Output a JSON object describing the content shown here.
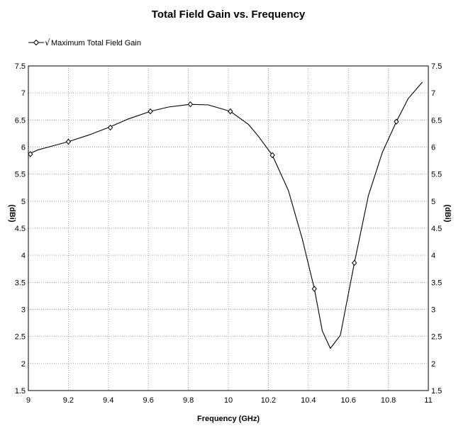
{
  "chart_data": {
    "type": "line",
    "title": "Total Field Gain vs. Frequency",
    "xlabel": "Frequency (GHz)",
    "ylabel": "(dBi)",
    "xlim": [
      9,
      11
    ],
    "ylim": [
      1.5,
      7.5
    ],
    "x_ticks": [
      "9",
      "9.2",
      "9.4",
      "9.6",
      "9.8",
      "10",
      "10.2",
      "10.4",
      "10.6",
      "10.8",
      "11"
    ],
    "y_ticks": [
      "1.5",
      "2",
      "2.5",
      "3",
      "3.5",
      "4",
      "4.5",
      "5",
      "5.5",
      "6",
      "6.5",
      "7",
      "7.5"
    ],
    "grid": true,
    "legend_position": "top-left",
    "series": [
      {
        "name": "Maximum Total Field Gain",
        "color": "#000000",
        "marker": "diamond",
        "x": [
          9.0,
          9.05,
          9.1,
          9.2,
          9.3,
          9.4,
          9.5,
          9.61,
          9.7,
          9.81,
          9.9,
          10.01,
          10.1,
          10.15,
          10.22,
          10.3,
          10.37,
          10.43,
          10.47,
          10.51,
          10.56,
          10.63,
          10.7,
          10.77,
          10.84,
          10.9,
          10.97
        ],
        "y": [
          5.87,
          5.95,
          6.0,
          6.1,
          6.22,
          6.36,
          6.52,
          6.66,
          6.74,
          6.79,
          6.78,
          6.66,
          6.42,
          6.2,
          5.85,
          5.2,
          4.3,
          3.38,
          2.6,
          2.28,
          2.52,
          3.86,
          5.1,
          5.9,
          6.47,
          6.9,
          7.2
        ],
        "marker_x": [
          9.01,
          9.2,
          9.41,
          9.61,
          9.81,
          10.01,
          10.22,
          10.43,
          10.63,
          10.84
        ],
        "marker_y": [
          5.87,
          6.1,
          6.36,
          6.66,
          6.79,
          6.66,
          5.85,
          3.38,
          3.86,
          6.47
        ]
      }
    ]
  }
}
